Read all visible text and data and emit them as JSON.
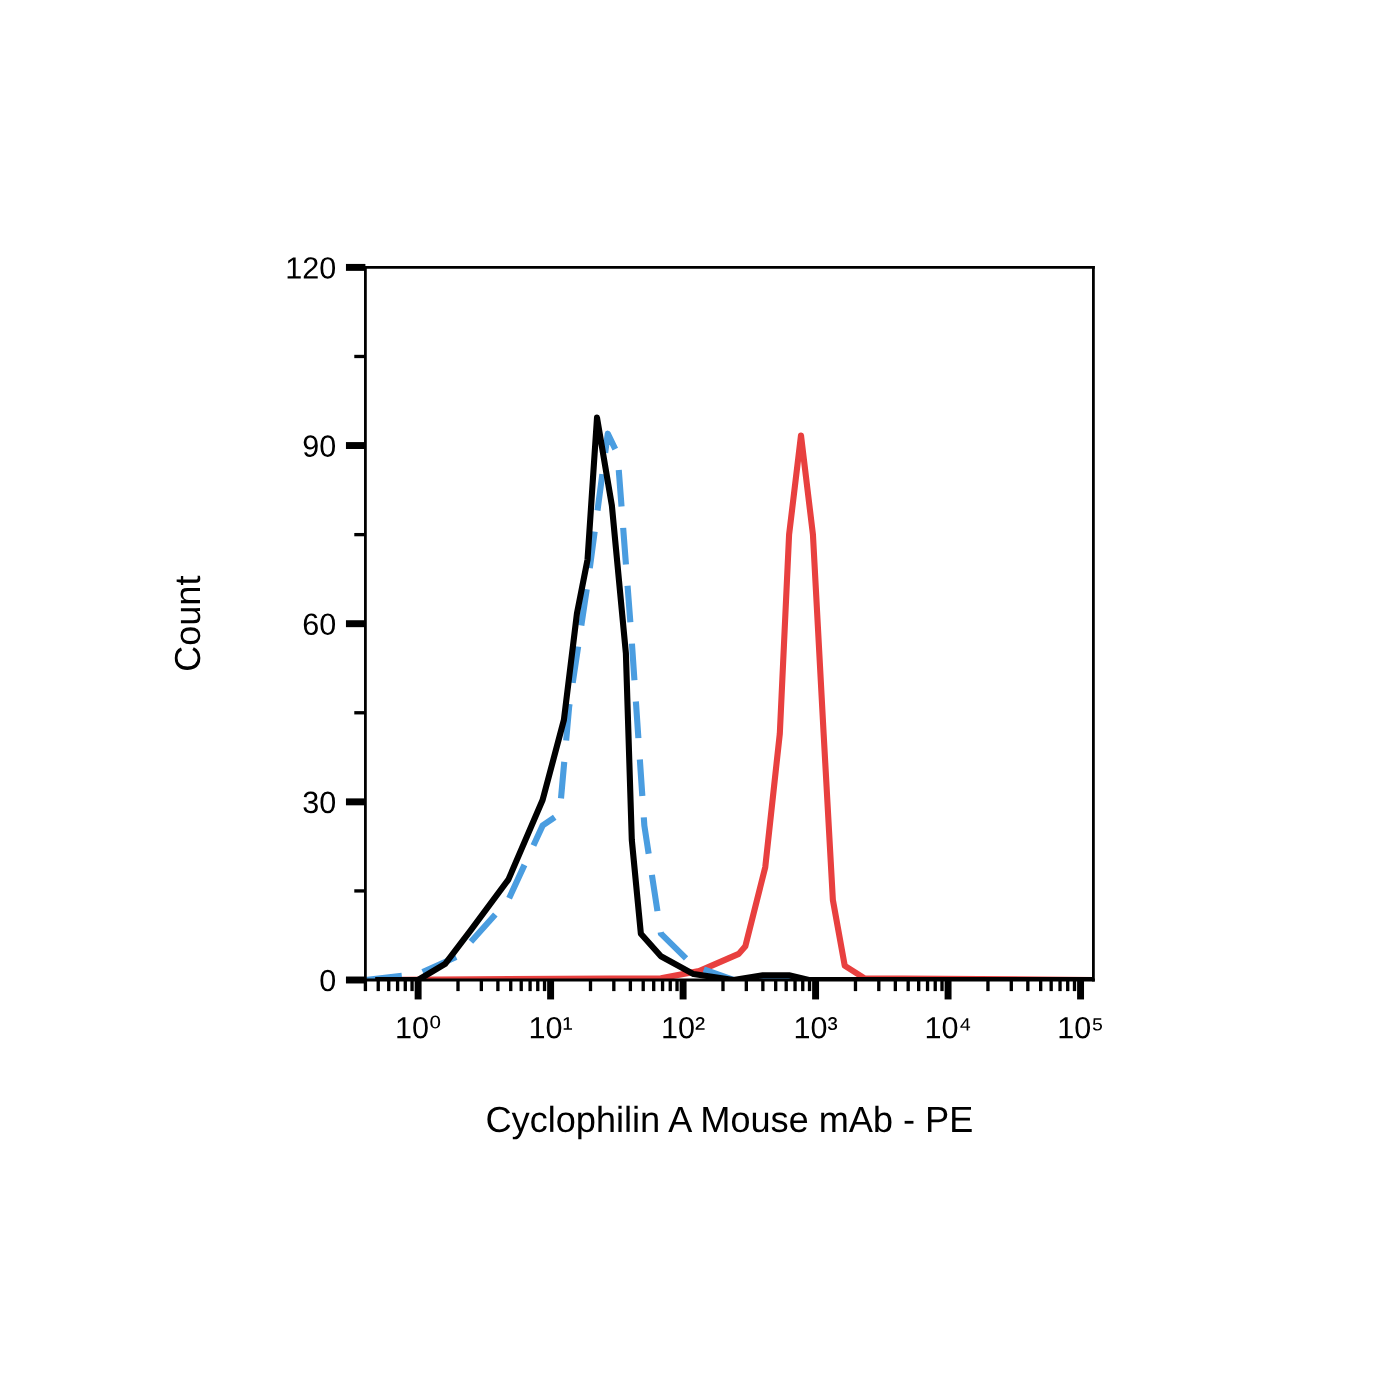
{
  "chart_data": {
    "type": "line",
    "xlabel": "Cyclophilin A Mouse mAb - PE",
    "ylabel": "Count",
    "log": "x",
    "xlim": [
      0.4,
      125000
    ],
    "ylim": [
      0,
      120
    ],
    "yticks": [
      0,
      30,
      60,
      90,
      120
    ],
    "xticks": [
      {
        "value": 1,
        "label": "10⁰"
      },
      {
        "value": 10,
        "label": "10¹"
      },
      {
        "value": 100,
        "label": "10²"
      },
      {
        "value": 1000,
        "label": "10³"
      },
      {
        "value": 10000,
        "label": "10⁴"
      },
      {
        "value": 100000,
        "label": "10⁵"
      }
    ],
    "grid": false,
    "legend": false,
    "marker": "none",
    "series": [
      {
        "color": "#e8403f",
        "line_style": "solid",
        "x": [
          0.4,
          68,
          132,
          263,
          295,
          417,
          537,
          631,
          776,
          955,
          1150,
          1350,
          1660,
          2340,
          123000
        ],
        "values": [
          0,
          0.3,
          1.5,
          4.4,
          5.7,
          19,
          41.5,
          75,
          91.7,
          75,
          41.5,
          13.5,
          2.4,
          0.3,
          0
        ]
      },
      {
        "color": "#4a9de0",
        "line_style": "dashed",
        "x": [
          0.4,
          1,
          2,
          4.8,
          8.7,
          11.7,
          13.8,
          19.5,
          27,
          32,
          41,
          51,
          68,
          120,
          240,
          123000
        ],
        "values": [
          0,
          1,
          4,
          13.5,
          26,
          28,
          46,
          68.4,
          92,
          88.6,
          57,
          26,
          7.8,
          2.4,
          0,
          0
        ]
      },
      {
        "color": "#000000",
        "line_style": "solid",
        "x": [
          0.5,
          1,
          1.6,
          2.5,
          4.8,
          8.7,
          12.6,
          15.8,
          19,
          22.4,
          29,
          37,
          41,
          48,
          68,
          120,
          240,
          400,
          630,
          890,
          1260,
          123000
        ],
        "values": [
          0,
          0,
          2.7,
          8.4,
          16.9,
          30.3,
          43.8,
          61.7,
          70.8,
          94.7,
          79.9,
          55,
          23.6,
          7.8,
          4,
          1,
          0,
          0.8,
          0.8,
          0,
          0,
          0
        ]
      }
    ]
  }
}
